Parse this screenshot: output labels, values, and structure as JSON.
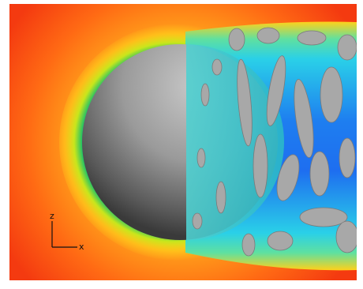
{
  "axes": {
    "vertical": "z",
    "horizontal": "x"
  }
}
